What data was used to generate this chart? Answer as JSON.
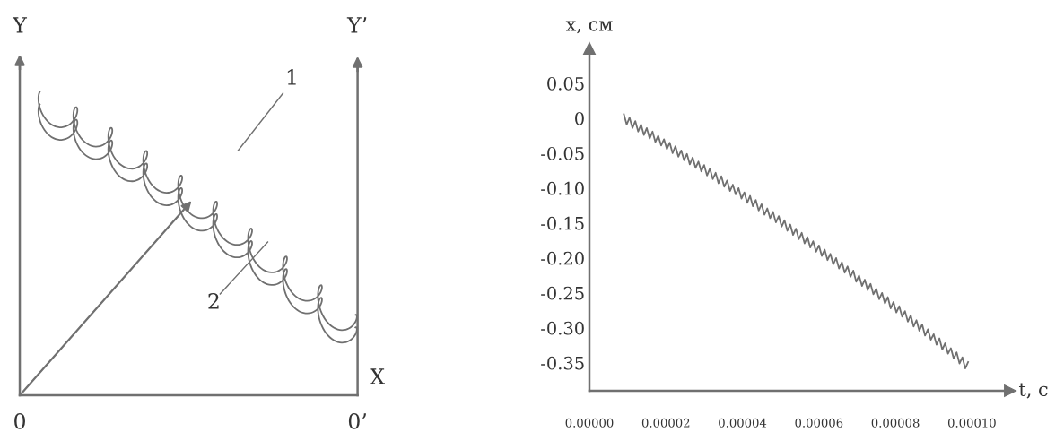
{
  "chart_data": [
    {
      "type": "other",
      "annotations": [
        "Y",
        "Y’",
        "1",
        "2",
        "X",
        "0",
        "0’"
      ]
    },
    {
      "type": "line",
      "xlabel": "t, с",
      "ylabel": "x, см",
      "color": "#707070",
      "marker": "none",
      "line_style": "solid",
      "grid": false,
      "legend": false,
      "xlim": [
        0,
        0.00011
      ],
      "ylim": [
        -0.39,
        0.1
      ],
      "xticks": [
        {
          "value": 0,
          "label": "0.00000"
        },
        {
          "value": 2e-05,
          "label": "0.00002"
        },
        {
          "value": 4e-05,
          "label": "0.00004"
        },
        {
          "value": 6e-05,
          "label": "0.00006"
        },
        {
          "value": 8e-05,
          "label": "0.00008"
        },
        {
          "value": 0.0001,
          "label": "0.00010"
        }
      ],
      "yticks": [
        0.05,
        0,
        -0.05,
        {
          "value": -0.1,
          "label": "-0.10"
        },
        -0.15,
        {
          "value": -0.2,
          "label": "-0.20"
        },
        -0.25,
        {
          "value": -0.3,
          "label": "-0.30"
        },
        -0.35
      ],
      "x": [
        9e-06,
        9.75e-06,
        1.05e-05,
        1.125e-05,
        1.2e-05,
        1.275e-05,
        1.35e-05,
        1.425e-05,
        1.5e-05,
        1.575e-05,
        1.65e-05,
        1.725e-05,
        1.8e-05,
        1.875e-05,
        1.95e-05,
        2.025e-05,
        2.1e-05,
        2.175e-05,
        2.25e-05,
        2.325e-05,
        2.4e-05,
        2.475e-05,
        2.55e-05,
        2.625e-05,
        2.7e-05,
        2.775e-05,
        2.85e-05,
        2.925e-05,
        3e-05,
        3.075e-05,
        3.15e-05,
        3.225e-05,
        3.3e-05,
        3.375e-05,
        3.45e-05,
        3.525e-05,
        3.6e-05,
        3.675e-05,
        3.75e-05,
        3.825e-05,
        3.9e-05,
        3.975e-05,
        4.05e-05,
        4.125e-05,
        4.2e-05,
        4.275e-05,
        4.35e-05,
        4.425e-05,
        4.5e-05,
        4.575e-05,
        4.65e-05,
        4.725e-05,
        4.8e-05,
        4.875e-05,
        4.95e-05,
        5.025e-05,
        5.1e-05,
        5.175e-05,
        5.25e-05,
        5.325e-05,
        5.4e-05,
        5.475e-05,
        5.55e-05,
        5.625e-05,
        5.7e-05,
        5.775e-05,
        5.85e-05,
        5.925e-05,
        6e-05,
        6.075e-05,
        6.15e-05,
        6.225e-05,
        6.3e-05,
        6.375e-05,
        6.45e-05,
        6.525e-05,
        6.6e-05,
        6.675e-05,
        6.75e-05,
        6.825e-05,
        6.9e-05,
        6.975e-05,
        7.05e-05,
        7.125e-05,
        7.2e-05,
        7.275e-05,
        7.35e-05,
        7.425e-05,
        7.5e-05,
        7.575e-05,
        7.65e-05,
        7.725e-05,
        7.8e-05,
        7.875e-05,
        7.95e-05,
        8.025e-05,
        8.1e-05,
        8.175e-05,
        8.25e-05,
        8.325e-05,
        8.4e-05,
        8.475e-05,
        8.55e-05,
        8.625e-05,
        8.7e-05,
        8.775e-05,
        8.85e-05,
        8.925e-05,
        9e-05,
        9.075e-05,
        9.15e-05,
        9.225e-05,
        9.3e-05,
        9.375e-05,
        9.45e-05,
        9.525e-05,
        9.6e-05,
        9.675e-05,
        9.75e-05,
        9.825e-05,
        9.9e-05
      ],
      "values": [
        0.006,
        -0.009,
        0.001,
        -0.014,
        -0.004,
        -0.019,
        -0.009,
        -0.024,
        -0.014,
        -0.029,
        -0.019,
        -0.034,
        -0.025,
        -0.039,
        -0.03,
        -0.044,
        -0.035,
        -0.05,
        -0.04,
        -0.055,
        -0.046,
        -0.06,
        -0.051,
        -0.066,
        -0.056,
        -0.071,
        -0.062,
        -0.076,
        -0.067,
        -0.082,
        -0.072,
        -0.087,
        -0.078,
        -0.093,
        -0.083,
        -0.098,
        -0.089,
        -0.104,
        -0.095,
        -0.109,
        -0.1,
        -0.115,
        -0.106,
        -0.121,
        -0.111,
        -0.126,
        -0.117,
        -0.132,
        -0.123,
        -0.138,
        -0.129,
        -0.143,
        -0.134,
        -0.149,
        -0.14,
        -0.155,
        -0.146,
        -0.161,
        -0.152,
        -0.167,
        -0.158,
        -0.173,
        -0.164,
        -0.179,
        -0.17,
        -0.185,
        -0.176,
        -0.191,
        -0.182,
        -0.197,
        -0.188,
        -0.203,
        -0.194,
        -0.209,
        -0.2,
        -0.215,
        -0.206,
        -0.221,
        -0.212,
        -0.227,
        -0.218,
        -0.234,
        -0.225,
        -0.24,
        -0.231,
        -0.246,
        -0.237,
        -0.252,
        -0.244,
        -0.259,
        -0.25,
        -0.265,
        -0.256,
        -0.272,
        -0.263,
        -0.278,
        -0.269,
        -0.284,
        -0.276,
        -0.291,
        -0.282,
        -0.298,
        -0.289,
        -0.304,
        -0.295,
        -0.311,
        -0.302,
        -0.317,
        -0.309,
        -0.324,
        -0.315,
        -0.331,
        -0.322,
        -0.337,
        -0.329,
        -0.344,
        -0.335,
        -0.351,
        -0.342,
        -0.358,
        -0.349
      ]
    }
  ]
}
